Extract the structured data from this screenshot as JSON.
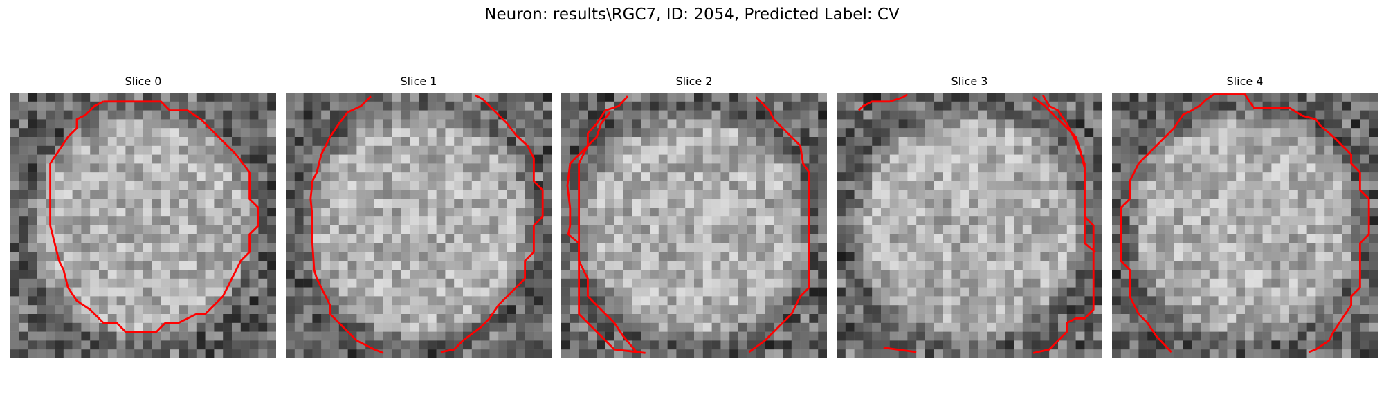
{
  "figure": {
    "title": "Neuron: results\\RGC7, ID: 2054, Predicted Label: CV"
  },
  "panels": [
    {
      "title": "Slice 0"
    },
    {
      "title": "Slice 1"
    },
    {
      "title": "Slice 2"
    },
    {
      "title": "Slice 3"
    },
    {
      "title": "Slice 4"
    }
  ],
  "style": {
    "contour_color": "#ff0000",
    "colormap": "grayscale"
  }
}
